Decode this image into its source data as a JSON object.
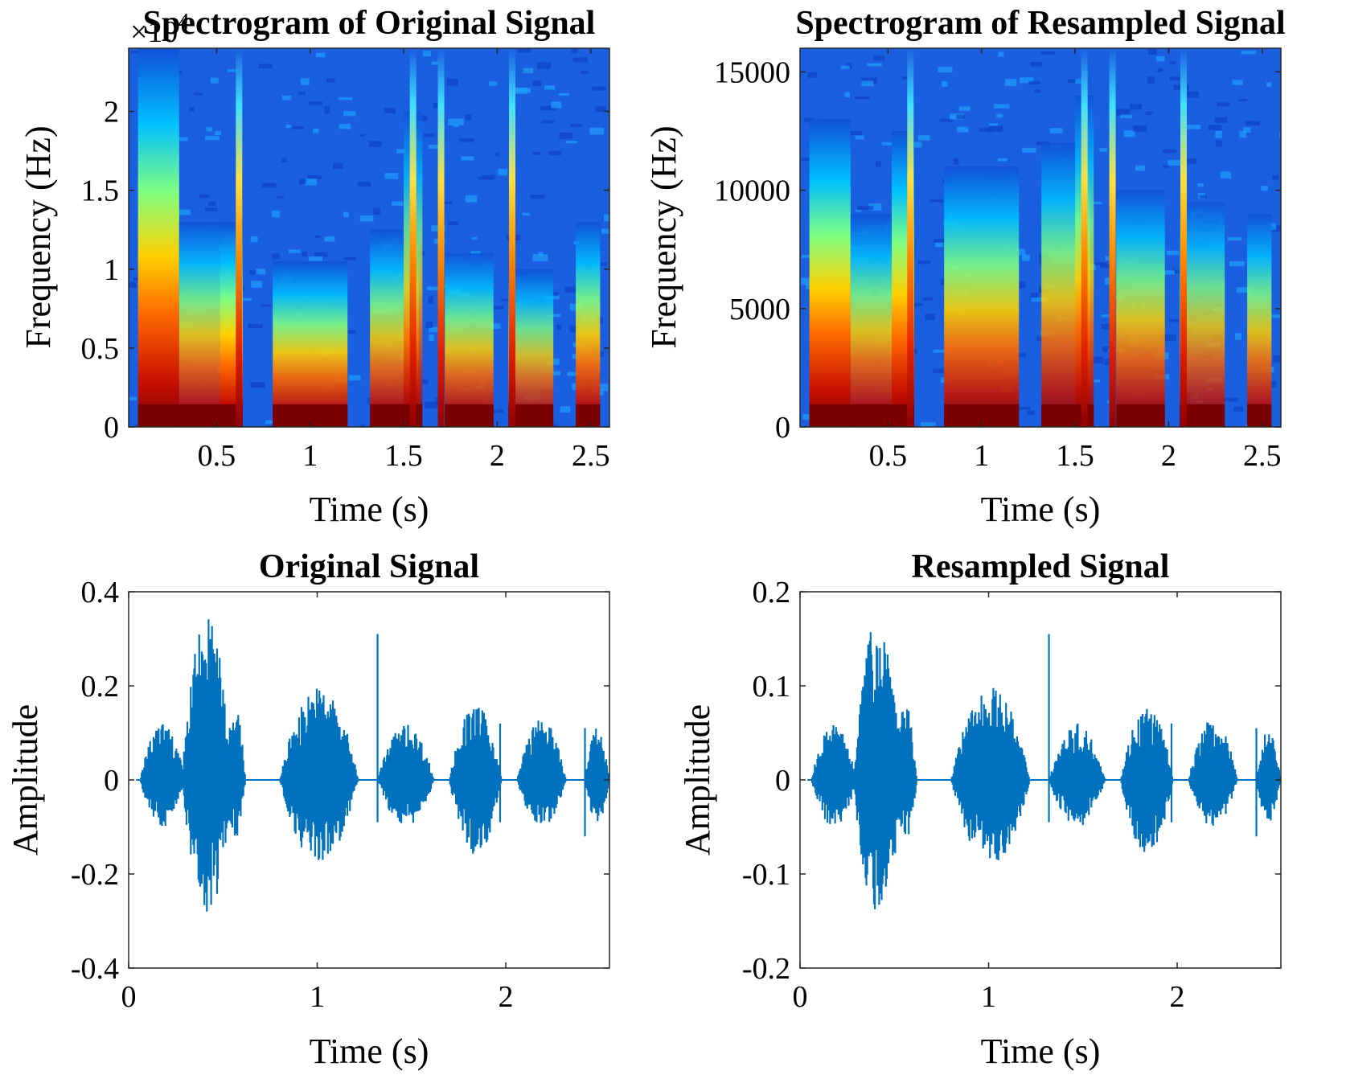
{
  "chart_data": [
    {
      "type": "heatmap",
      "title": "Spectrogram of Original Signal",
      "xlabel": "Time (s)",
      "ylabel": "Frequency (Hz)",
      "xlim": [
        0.03,
        2.6
      ],
      "ylim": [
        0,
        24000
      ],
      "x_ticks": [
        0.5,
        1,
        1.5,
        2,
        2.5
      ],
      "x_tick_labels": [
        "0.5",
        "1",
        "1.5",
        "2",
        "2.5"
      ],
      "y_ticks": [
        0,
        5000,
        10000,
        15000,
        20000
      ],
      "y_tick_labels": [
        "0",
        "0.5",
        "1",
        "1.5",
        "2"
      ],
      "y_exponent_label": "×10",
      "y_exponent_power": "4",
      "colormap": "jet",
      "segments": [
        {
          "start": 0.08,
          "end": 0.3,
          "band": 24000,
          "level": 1.0
        },
        {
          "start": 0.3,
          "end": 0.56,
          "band": 13000,
          "level": 0.85
        },
        {
          "start": 0.52,
          "end": 0.64,
          "band": 13000,
          "level": 1.0
        },
        {
          "start": 0.8,
          "end": 1.2,
          "band": 10500,
          "level": 0.9
        },
        {
          "start": 1.32,
          "end": 1.58,
          "band": 12500,
          "level": 0.85
        },
        {
          "start": 1.5,
          "end": 1.6,
          "band": 20000,
          "level": 0.75
        },
        {
          "start": 1.72,
          "end": 1.98,
          "band": 11000,
          "level": 0.85
        },
        {
          "start": 2.06,
          "end": 2.3,
          "band": 10000,
          "level": 0.8
        },
        {
          "start": 2.42,
          "end": 2.55,
          "band": 13000,
          "level": 0.9
        }
      ],
      "bursts": [
        0.62,
        1.55,
        1.7,
        2.08
      ]
    },
    {
      "type": "heatmap",
      "title": "Spectrogram of Resampled Signal",
      "xlabel": "Time (s)",
      "ylabel": "Frequency (Hz)",
      "xlim": [
        0.03,
        2.6
      ],
      "ylim": [
        0,
        16000
      ],
      "x_ticks": [
        0.5,
        1,
        1.5,
        2,
        2.5
      ],
      "x_tick_labels": [
        "0.5",
        "1",
        "1.5",
        "2",
        "2.5"
      ],
      "y_ticks": [
        0,
        5000,
        10000,
        15000
      ],
      "y_tick_labels": [
        "0",
        "5000",
        "10000",
        "15000"
      ],
      "colormap": "jet",
      "segments": [
        {
          "start": 0.08,
          "end": 0.3,
          "band": 13000,
          "level": 1.0
        },
        {
          "start": 0.3,
          "end": 0.56,
          "band": 9000,
          "level": 0.85
        },
        {
          "start": 0.52,
          "end": 0.64,
          "band": 12500,
          "level": 1.0
        },
        {
          "start": 0.8,
          "end": 1.2,
          "band": 11000,
          "level": 0.9
        },
        {
          "start": 1.32,
          "end": 1.58,
          "band": 12000,
          "level": 0.85
        },
        {
          "start": 1.5,
          "end": 1.6,
          "band": 14000,
          "level": 0.8
        },
        {
          "start": 1.72,
          "end": 1.98,
          "band": 10000,
          "level": 0.85
        },
        {
          "start": 2.06,
          "end": 2.3,
          "band": 9500,
          "level": 0.8
        },
        {
          "start": 2.42,
          "end": 2.55,
          "band": 9000,
          "level": 0.85
        }
      ],
      "bursts": [
        0.62,
        1.55,
        1.7,
        2.08
      ]
    },
    {
      "type": "line",
      "title": "Original Signal",
      "xlabel": "Time (s)",
      "ylabel": "Amplitude",
      "xlim": [
        0,
        2.55
      ],
      "ylim": [
        -0.4,
        0.4
      ],
      "x_ticks": [
        0,
        1,
        2
      ],
      "x_tick_labels": [
        "0",
        "1",
        "2"
      ],
      "y_ticks": [
        -0.4,
        -0.2,
        0,
        0.2,
        0.4
      ],
      "y_tick_labels": [
        "-0.4",
        "-0.2",
        "0",
        "0.2",
        "0.4"
      ],
      "color": "#0072BD",
      "segments": [
        {
          "start": 0.06,
          "end": 0.3,
          "peak": 0.12,
          "trough": -0.1
        },
        {
          "start": 0.28,
          "end": 0.55,
          "peak": 0.35,
          "trough": -0.29
        },
        {
          "start": 0.5,
          "end": 0.62,
          "peak": 0.16,
          "trough": -0.13
        },
        {
          "start": 0.8,
          "end": 1.22,
          "peak": 0.2,
          "trough": -0.18
        },
        {
          "start": 1.32,
          "end": 1.62,
          "peak": 0.12,
          "trough": -0.1
        },
        {
          "start": 1.7,
          "end": 1.98,
          "peak": 0.16,
          "trough": -0.16
        },
        {
          "start": 2.06,
          "end": 2.32,
          "peak": 0.13,
          "trough": -0.1
        },
        {
          "start": 2.42,
          "end": 2.55,
          "peak": 0.11,
          "trough": -0.09
        }
      ],
      "spikes": [
        {
          "t": 1.32,
          "top": 0.31,
          "bottom": -0.09
        },
        {
          "t": 1.97,
          "top": 0.12,
          "bottom": -0.09
        },
        {
          "t": 2.42,
          "top": 0.11,
          "bottom": -0.12
        }
      ]
    },
    {
      "type": "line",
      "title": "Resampled Signal",
      "xlabel": "Time (s)",
      "ylabel": "Amplitude",
      "xlim": [
        0,
        2.55
      ],
      "ylim": [
        -0.2,
        0.2
      ],
      "x_ticks": [
        0,
        1,
        2
      ],
      "x_tick_labels": [
        "0",
        "1",
        "2"
      ],
      "y_ticks": [
        -0.2,
        -0.1,
        0,
        0.1,
        0.2
      ],
      "y_tick_labels": [
        "-0.2",
        "-0.1",
        "0",
        "0.1",
        "0.2"
      ],
      "color": "#0072BD",
      "segments": [
        {
          "start": 0.06,
          "end": 0.3,
          "peak": 0.06,
          "trough": -0.05
        },
        {
          "start": 0.28,
          "end": 0.55,
          "peak": 0.175,
          "trough": -0.145
        },
        {
          "start": 0.5,
          "end": 0.62,
          "peak": 0.08,
          "trough": -0.065
        },
        {
          "start": 0.8,
          "end": 1.22,
          "peak": 0.1,
          "trough": -0.09
        },
        {
          "start": 1.32,
          "end": 1.62,
          "peak": 0.06,
          "trough": -0.05
        },
        {
          "start": 1.7,
          "end": 1.98,
          "peak": 0.08,
          "trough": -0.08
        },
        {
          "start": 2.06,
          "end": 2.32,
          "peak": 0.065,
          "trough": -0.05
        },
        {
          "start": 2.42,
          "end": 2.55,
          "peak": 0.055,
          "trough": -0.045
        }
      ],
      "spikes": [
        {
          "t": 1.32,
          "top": 0.155,
          "bottom": -0.045
        },
        {
          "t": 1.97,
          "top": 0.06,
          "bottom": -0.045
        },
        {
          "t": 2.42,
          "top": 0.055,
          "bottom": -0.06
        }
      ]
    }
  ]
}
